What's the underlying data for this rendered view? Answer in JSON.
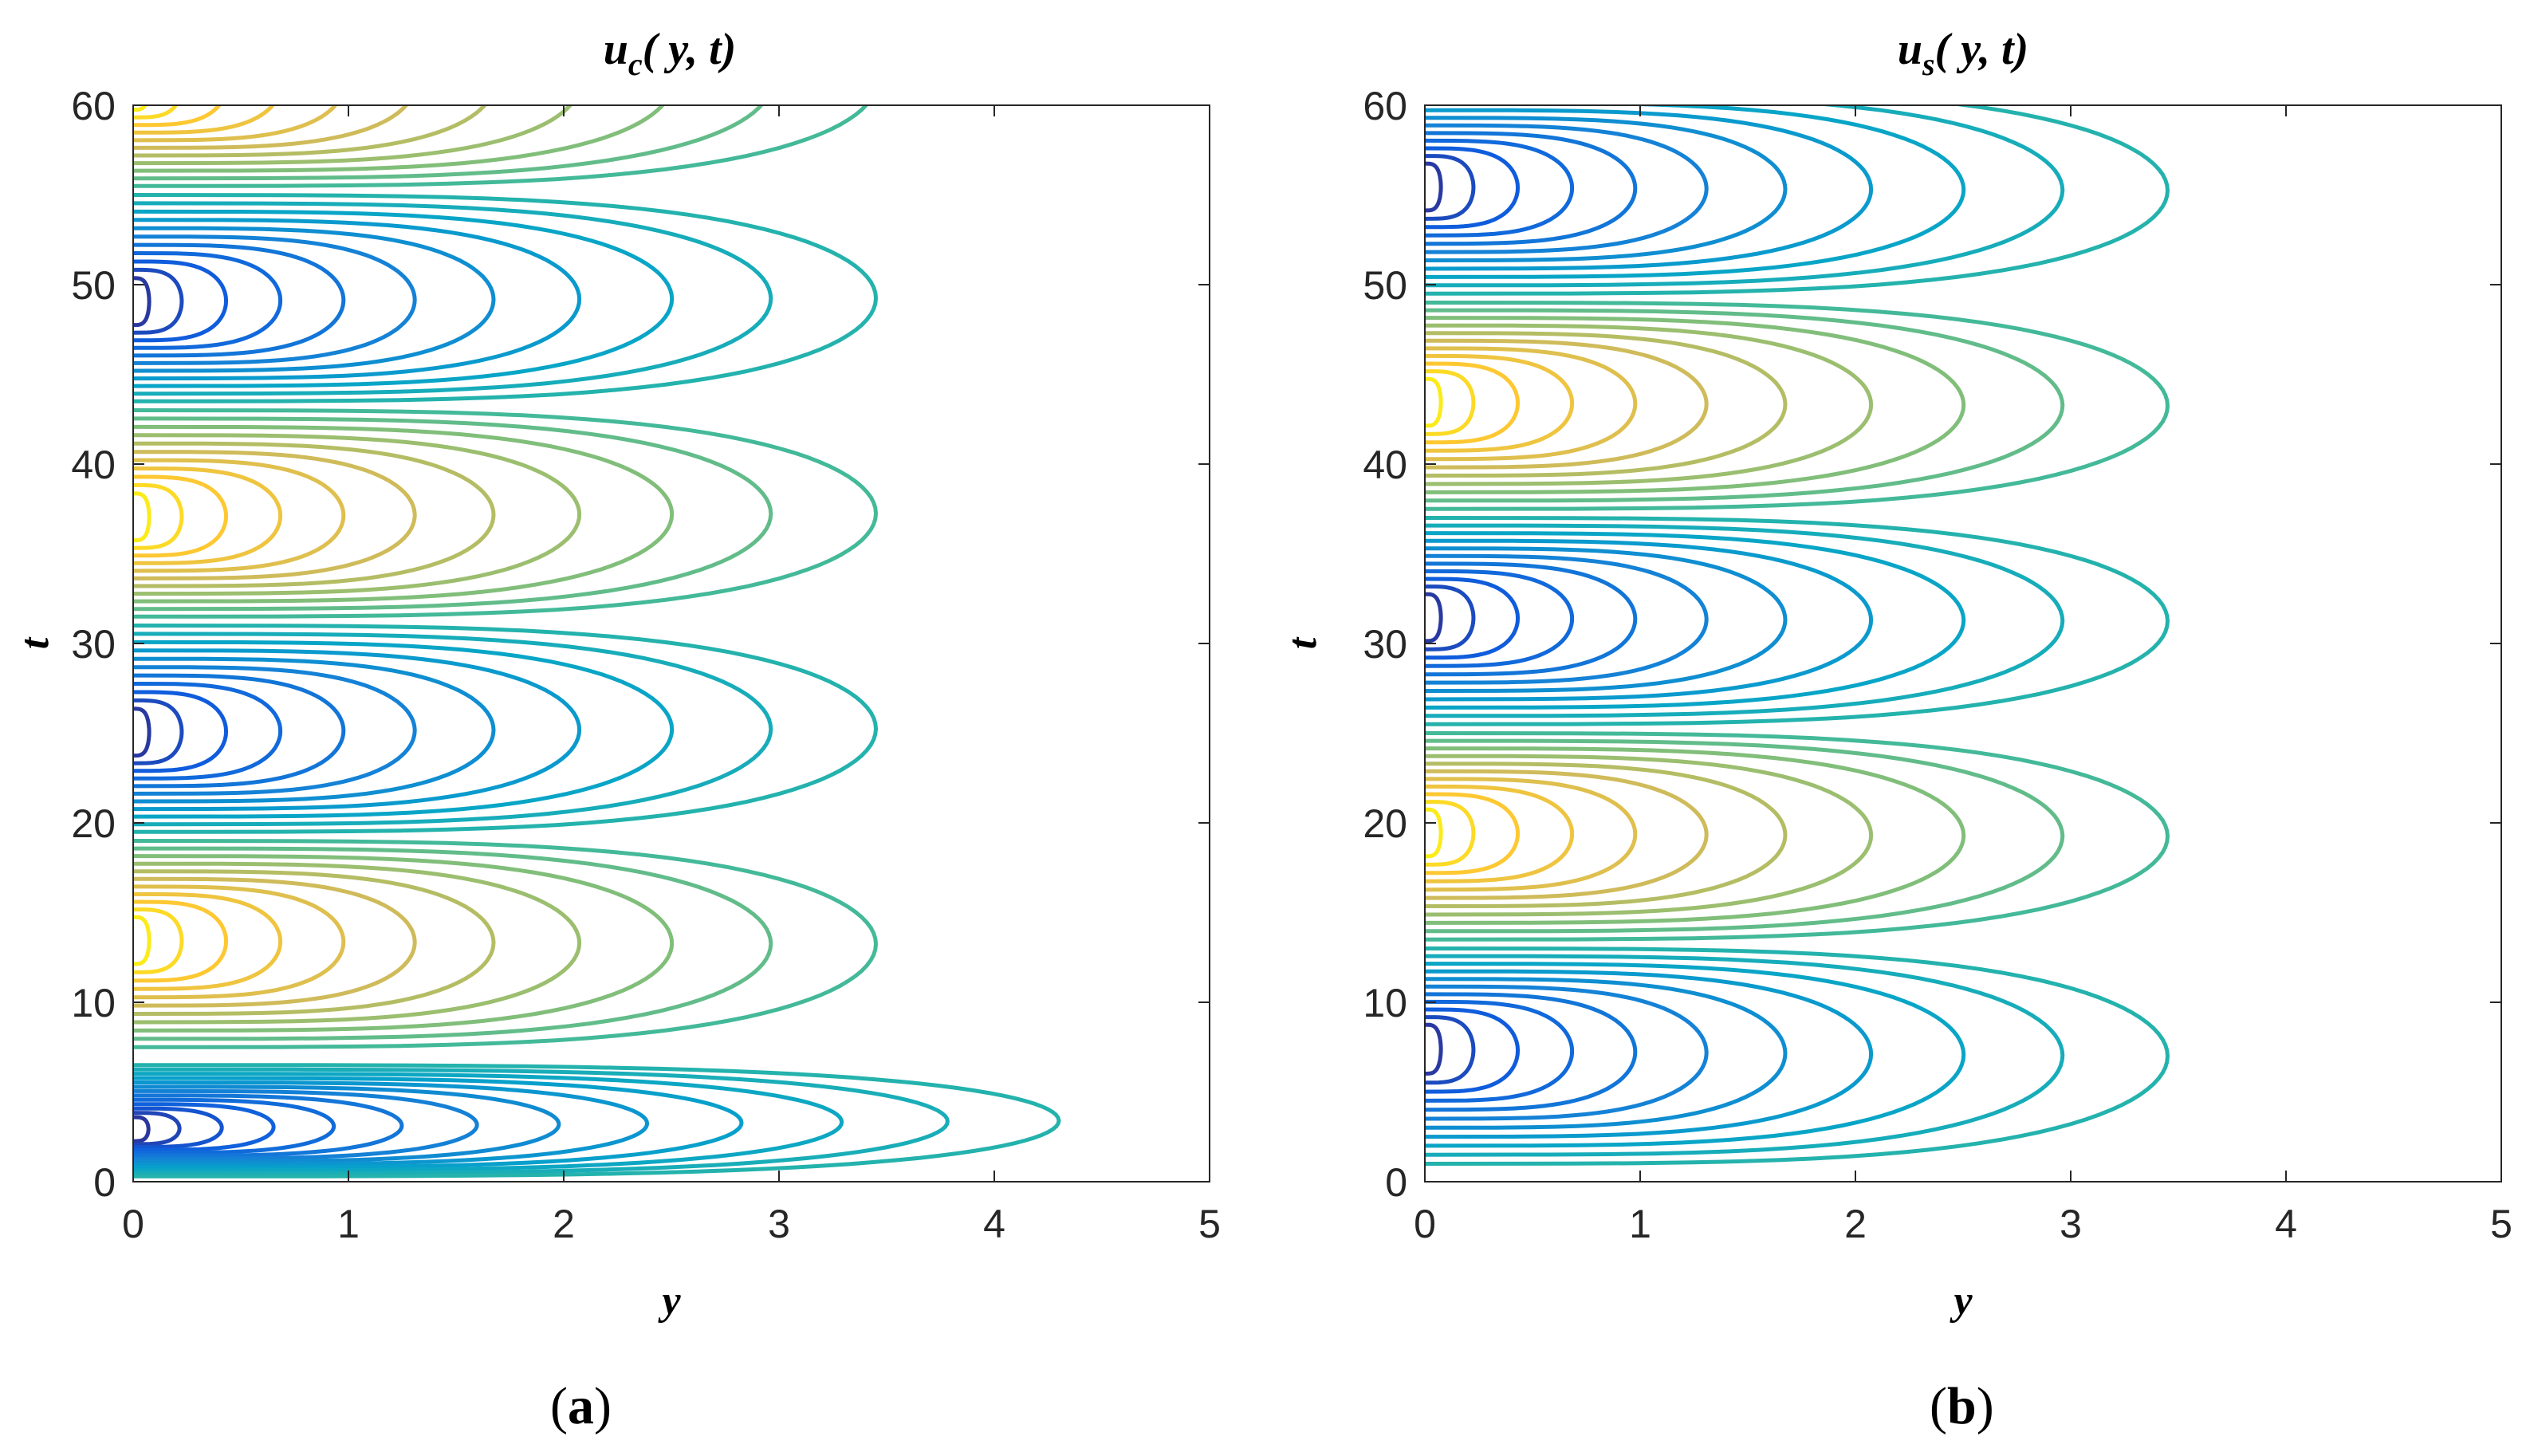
{
  "chart_data": [
    {
      "type": "contour",
      "title": {
        "base": "u",
        "sub": "c",
        "args": "( y, t)"
      },
      "xlabel": "y",
      "ylabel": "t",
      "xlim": [
        0,
        5
      ],
      "ylim": [
        0,
        60
      ],
      "xticks": [
        "0",
        "1",
        "2",
        "3",
        "4",
        "5"
      ],
      "yticks": [
        "0",
        "10",
        "20",
        "30",
        "40",
        "50",
        "60"
      ],
      "colormap": "parula",
      "lobes": [
        {
          "t_center": 2.8,
          "t_lower": 0.3,
          "t_upper": 6.5,
          "sign": -1,
          "amplitude": 1.0,
          "outer_extent_y": 4.3,
          "levels": 13
        },
        {
          "t_center": 13.5,
          "t_lower": 7.5,
          "t_upper": 19.0,
          "sign": 1,
          "amplitude": 1.0,
          "outer_extent_y": 3.45,
          "levels": 11
        },
        {
          "t_center": 25.0,
          "t_lower": 19.5,
          "t_upper": 31.0,
          "sign": -1,
          "amplitude": 1.0,
          "outer_extent_y": 3.45,
          "levels": 11
        },
        {
          "t_center": 37.0,
          "t_lower": 31.5,
          "t_upper": 43.0,
          "sign": 1,
          "amplitude": 1.0,
          "outer_extent_y": 3.45,
          "levels": 11
        },
        {
          "t_center": 49.0,
          "t_lower": 43.5,
          "t_upper": 55.0,
          "sign": -1,
          "amplitude": 1.0,
          "outer_extent_y": 3.45,
          "levels": 11
        },
        {
          "t_center": 61.0,
          "t_lower": 55.5,
          "t_upper": 67.0,
          "sign": 1,
          "amplitude": 1.0,
          "outer_extent_y": 3.45,
          "levels": 11
        }
      ],
      "panel_label": "a"
    },
    {
      "type": "contour",
      "title": {
        "base": "u",
        "sub": "s",
        "args": "( y, t)"
      },
      "xlabel": "y",
      "ylabel": "t",
      "xlim": [
        0,
        5
      ],
      "ylim": [
        0,
        60
      ],
      "xticks": [
        "0",
        "1",
        "2",
        "3",
        "4",
        "5"
      ],
      "yticks": [
        "0",
        "10",
        "20",
        "30",
        "40",
        "50",
        "60"
      ],
      "colormap": "parula",
      "lobes": [
        {
          "t_center": 7.5,
          "t_lower": 1.0,
          "t_upper": 13.0,
          "sign": -1,
          "amplitude": 1.0,
          "outer_extent_y": 3.45,
          "levels": 11
        },
        {
          "t_center": 19.5,
          "t_lower": 13.5,
          "t_upper": 25.0,
          "sign": 1,
          "amplitude": 1.0,
          "outer_extent_y": 3.45,
          "levels": 11
        },
        {
          "t_center": 31.5,
          "t_lower": 25.5,
          "t_upper": 37.0,
          "sign": -1,
          "amplitude": 1.0,
          "outer_extent_y": 3.45,
          "levels": 11
        },
        {
          "t_center": 43.5,
          "t_lower": 37.5,
          "t_upper": 49.0,
          "sign": 1,
          "amplitude": 1.0,
          "outer_extent_y": 3.45,
          "levels": 11
        },
        {
          "t_center": 55.5,
          "t_lower": 49.5,
          "t_upper": 61.0,
          "sign": -1,
          "amplitude": 1.0,
          "outer_extent_y": 3.45,
          "levels": 11
        }
      ],
      "panel_label": "b"
    }
  ],
  "colors": {
    "parula": [
      "#352a87",
      "#0f5cdd",
      "#1481d6",
      "#06a4ca",
      "#2eb7a4",
      "#87bf77",
      "#d1bb59",
      "#fec832",
      "#f9fb0e"
    ]
  }
}
